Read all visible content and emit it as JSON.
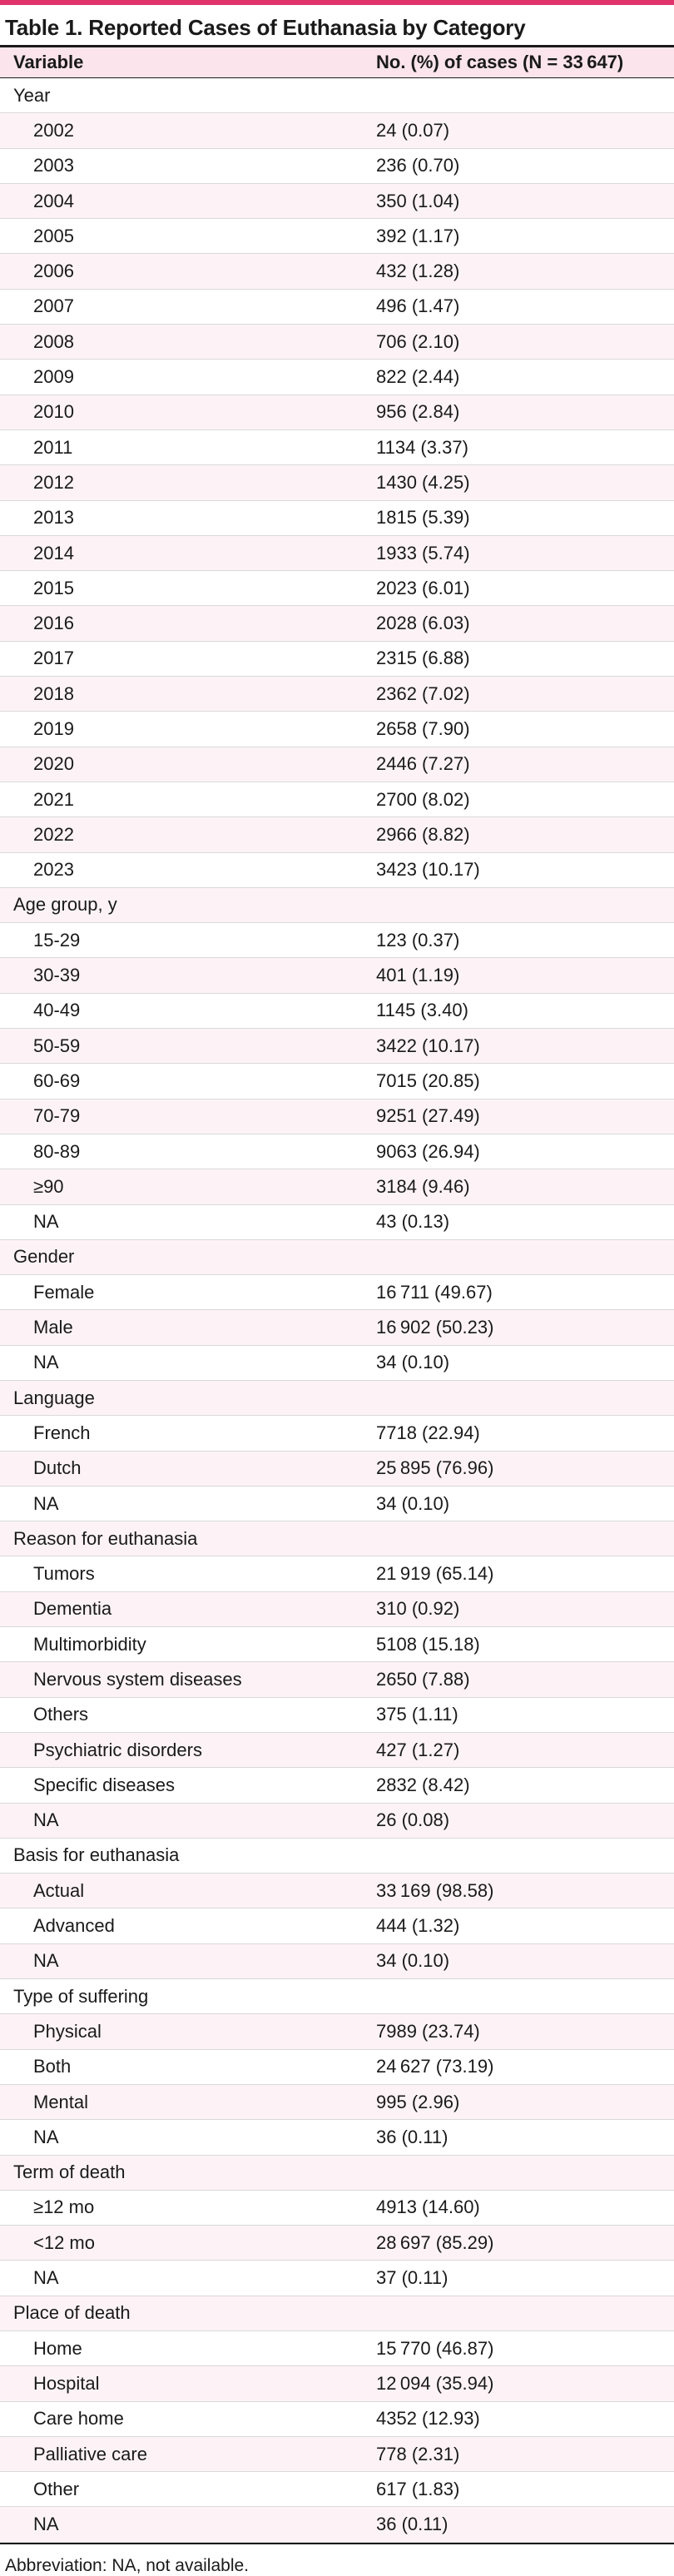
{
  "title": "Table 1. Reported Cases of Euthanasia by Category",
  "columns": [
    "Variable",
    "No. (%) of cases (N = 33 647)"
  ],
  "sections": [
    {
      "label": "Year",
      "rows": [
        [
          "2002",
          "24 (0.07)"
        ],
        [
          "2003",
          "236 (0.70)"
        ],
        [
          "2004",
          "350 (1.04)"
        ],
        [
          "2005",
          "392 (1.17)"
        ],
        [
          "2006",
          "432 (1.28)"
        ],
        [
          "2007",
          "496 (1.47)"
        ],
        [
          "2008",
          "706 (2.10)"
        ],
        [
          "2009",
          "822 (2.44)"
        ],
        [
          "2010",
          "956 (2.84)"
        ],
        [
          "2011",
          "1134 (3.37)"
        ],
        [
          "2012",
          "1430 (4.25)"
        ],
        [
          "2013",
          "1815 (5.39)"
        ],
        [
          "2014",
          "1933 (5.74)"
        ],
        [
          "2015",
          "2023 (6.01)"
        ],
        [
          "2016",
          "2028 (6.03)"
        ],
        [
          "2017",
          "2315 (6.88)"
        ],
        [
          "2018",
          "2362 (7.02)"
        ],
        [
          "2019",
          "2658 (7.90)"
        ],
        [
          "2020",
          "2446 (7.27)"
        ],
        [
          "2021",
          "2700 (8.02)"
        ],
        [
          "2022",
          "2966 (8.82)"
        ],
        [
          "2023",
          "3423 (10.17)"
        ]
      ]
    },
    {
      "label": "Age group, y",
      "rows": [
        [
          "15-29",
          "123 (0.37)"
        ],
        [
          "30-39",
          "401 (1.19)"
        ],
        [
          "40-49",
          "1145 (3.40)"
        ],
        [
          "50-59",
          "3422 (10.17)"
        ],
        [
          "60-69",
          "7015 (20.85)"
        ],
        [
          "70-79",
          "9251 (27.49)"
        ],
        [
          "80-89",
          "9063 (26.94)"
        ],
        [
          "≥90",
          "3184 (9.46)"
        ],
        [
          "NA",
          "43 (0.13)"
        ]
      ]
    },
    {
      "label": "Gender",
      "rows": [
        [
          "Female",
          "16 711 (49.67)"
        ],
        [
          "Male",
          "16 902 (50.23)"
        ],
        [
          "NA",
          "34 (0.10)"
        ]
      ]
    },
    {
      "label": "Language",
      "rows": [
        [
          "French",
          "7718 (22.94)"
        ],
        [
          "Dutch",
          "25 895 (76.96)"
        ],
        [
          "NA",
          "34 (0.10)"
        ]
      ]
    },
    {
      "label": "Reason for euthanasia",
      "rows": [
        [
          "Tumors",
          "21 919 (65.14)"
        ],
        [
          "Dementia",
          "310 (0.92)"
        ],
        [
          "Multimorbidity",
          "5108 (15.18)"
        ],
        [
          "Nervous system diseases",
          "2650 (7.88)"
        ],
        [
          "Others",
          "375 (1.11)"
        ],
        [
          "Psychiatric disorders",
          "427 (1.27)"
        ],
        [
          "Specific diseases",
          "2832 (8.42)"
        ],
        [
          "NA",
          "26 (0.08)"
        ]
      ]
    },
    {
      "label": "Basis for euthanasia",
      "rows": [
        [
          "Actual",
          "33 169 (98.58)"
        ],
        [
          "Advanced",
          "444 (1.32)"
        ],
        [
          "NA",
          "34 (0.10)"
        ]
      ]
    },
    {
      "label": "Type of suffering",
      "rows": [
        [
          "Physical",
          "7989 (23.74)"
        ],
        [
          "Both",
          "24 627 (73.19)"
        ],
        [
          "Mental",
          "995 (2.96)"
        ],
        [
          "NA",
          "36 (0.11)"
        ]
      ]
    },
    {
      "label": "Term of death",
      "rows": [
        [
          "≥12 mo",
          "4913 (14.60)"
        ],
        [
          "<12 mo",
          "28 697 (85.29)"
        ],
        [
          "NA",
          "37 (0.11)"
        ]
      ]
    },
    {
      "label": "Place of death",
      "rows": [
        [
          "Home",
          "15 770 (46.87)"
        ],
        [
          "Hospital",
          "12 094 (35.94)"
        ],
        [
          "Care home",
          "4352 (12.93)"
        ],
        [
          "Palliative care",
          "778 (2.31)"
        ],
        [
          "Other",
          "617 (1.83)"
        ],
        [
          "NA",
          "36 (0.11)"
        ]
      ]
    }
  ],
  "footnote": "Abbreviation: NA, not available.",
  "colors": {
    "accent": "#e0336c",
    "header_bg": "#fbe4eb",
    "row_shade": "#fdf3f6"
  }
}
